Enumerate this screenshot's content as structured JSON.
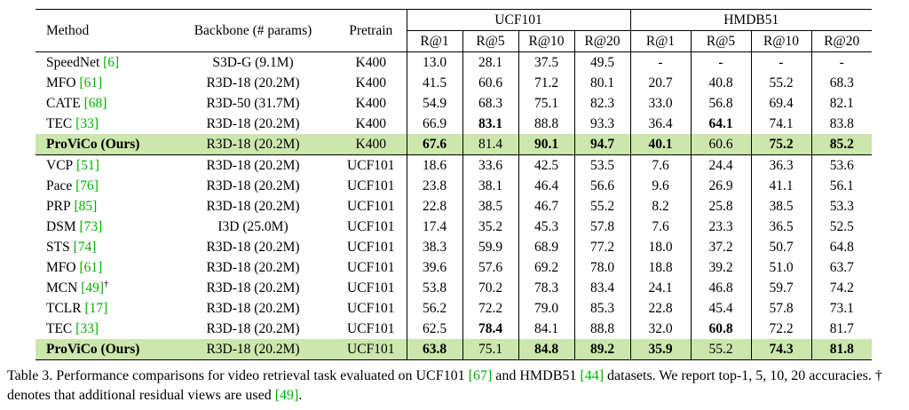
{
  "colors": {
    "citation_green": "#00b000",
    "highlight_green": "#cbe7ac"
  },
  "table": {
    "headers": {
      "method": "Method",
      "backbone": "Backbone (# params)",
      "pretrain": "Pretrain",
      "group1": "UCF101",
      "group2": "HMDB51",
      "metrics": [
        "R@1",
        "R@5",
        "R@10",
        "R@20"
      ]
    },
    "sections": [
      {
        "rows": [
          {
            "method": "SpeedNet",
            "cite": "[6]",
            "backbone": "S3D-G (9.1M)",
            "pretrain": "K400",
            "values": [
              "13.0",
              "28.1",
              "37.5",
              "49.5",
              "-",
              "-",
              "-",
              "-"
            ],
            "bold": []
          },
          {
            "method": "MFO",
            "cite": "[61]",
            "backbone": "R3D-18 (20.2M)",
            "pretrain": "K400",
            "values": [
              "41.5",
              "60.6",
              "71.2",
              "80.1",
              "20.7",
              "40.8",
              "55.2",
              "68.3"
            ],
            "bold": []
          },
          {
            "method": "CATE",
            "cite": "[68]",
            "backbone": "R3D-50 (31.7M)",
            "pretrain": "K400",
            "values": [
              "54.9",
              "68.3",
              "75.1",
              "82.3",
              "33.0",
              "56.8",
              "69.4",
              "82.1"
            ],
            "bold": []
          },
          {
            "method": "TEC",
            "cite": "[33]",
            "backbone": "R3D-18 (20.2M)",
            "pretrain": "K400",
            "values": [
              "66.9",
              "83.1",
              "88.8",
              "93.3",
              "36.4",
              "64.1",
              "74.1",
              "83.8"
            ],
            "bold": [
              1,
              5
            ]
          },
          {
            "method": "ProViCo (Ours)",
            "bold_method": true,
            "highlight": true,
            "backbone": "R3D-18 (20.2M)",
            "pretrain": "K400",
            "values": [
              "67.6",
              "81.4",
              "90.1",
              "94.7",
              "40.1",
              "60.6",
              "75.2",
              "85.2"
            ],
            "bold": [
              0,
              2,
              3,
              4,
              6,
              7
            ]
          }
        ]
      },
      {
        "rows": [
          {
            "method": "VCP",
            "cite": "[51]",
            "backbone": "R3D-18 (20.2M)",
            "pretrain": "UCF101",
            "values": [
              "18.6",
              "33.6",
              "42.5",
              "53.5",
              "7.6",
              "24.4",
              "36.3",
              "53.6"
            ],
            "bold": []
          },
          {
            "method": "Pace",
            "cite": "[76]",
            "backbone": "R3D-18 (20.2M)",
            "pretrain": "UCF101",
            "values": [
              "23.8",
              "38.1",
              "46.4",
              "56.6",
              "9.6",
              "26.9",
              "41.1",
              "56.1"
            ],
            "bold": []
          },
          {
            "method": "PRP",
            "cite": "[85]",
            "backbone": "R3D-18 (20.2M)",
            "pretrain": "UCF101",
            "values": [
              "22.8",
              "38.5",
              "46.7",
              "55.2",
              "8.2",
              "25.8",
              "38.5",
              "53.3"
            ],
            "bold": []
          },
          {
            "method": "DSM",
            "cite": "[73]",
            "backbone": "I3D (25.0M)",
            "pretrain": "UCF101",
            "values": [
              "17.4",
              "35.2",
              "45.3",
              "57.8",
              "7.6",
              "23.3",
              "36.5",
              "52.5"
            ],
            "bold": []
          },
          {
            "method": "STS",
            "cite": "[74]",
            "backbone": "R3D-18 (20.2M)",
            "pretrain": "UCF101",
            "values": [
              "38.3",
              "59.9",
              "68.9",
              "77.2",
              "18.0",
              "37.2",
              "50.7",
              "64.8"
            ],
            "bold": []
          },
          {
            "method": "MFO",
            "cite": "[61]",
            "backbone": "R3D-18 (20.2M)",
            "pretrain": "UCF101",
            "values": [
              "39.6",
              "57.6",
              "69.2",
              "78.0",
              "18.8",
              "39.2",
              "51.0",
              "63.7"
            ],
            "bold": []
          },
          {
            "method": "MCN",
            "cite": "[49]",
            "dagger": "†",
            "backbone": "R3D-18 (20.2M)",
            "pretrain": "UCF101",
            "values": [
              "53.8",
              "70.2",
              "78.3",
              "83.4",
              "24.1",
              "46.8",
              "59.7",
              "74.2"
            ],
            "bold": []
          },
          {
            "method": "TCLR",
            "cite": "[17]",
            "backbone": "R3D-18 (20.2M)",
            "pretrain": "UCF101",
            "values": [
              "56.2",
              "72.2",
              "79.0",
              "85.3",
              "22.8",
              "45.4",
              "57.8",
              "73.1"
            ],
            "bold": []
          },
          {
            "method": "TEC",
            "cite": "[33]",
            "backbone": "R3D-18 (20.2M)",
            "pretrain": "UCF101",
            "values": [
              "62.5",
              "78.4",
              "84.1",
              "88.8",
              "32.0",
              "60.8",
              "72.2",
              "81.7"
            ],
            "bold": [
              1,
              5
            ]
          },
          {
            "method": "ProViCo (Ours)",
            "bold_method": true,
            "highlight": true,
            "backbone": "R3D-18 (20.2M)",
            "pretrain": "UCF101",
            "values": [
              "63.8",
              "75.1",
              "84.8",
              "89.2",
              "35.9",
              "55.2",
              "74.3",
              "81.8"
            ],
            "bold": [
              0,
              2,
              3,
              4,
              6,
              7
            ]
          }
        ]
      }
    ]
  },
  "caption": {
    "segments": [
      {
        "text": "Table 3. Performance comparisons for video retrieval task evaluated on UCF101 "
      },
      {
        "cite": "[67]"
      },
      {
        "text": " and HMDB51 "
      },
      {
        "cite": "[44]"
      },
      {
        "text": " datasets. We report top-1, 5, 10, 20 accuracies. † denotes that additional residual views are used "
      },
      {
        "cite": "[49]"
      },
      {
        "text": "."
      }
    ]
  }
}
